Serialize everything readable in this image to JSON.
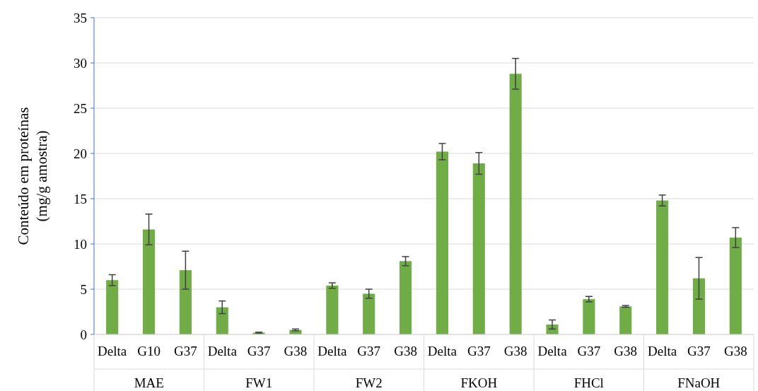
{
  "chart_data": {
    "type": "bar",
    "ylabel": "Conteúdo em proteínas\n(mg/g amostra)",
    "categories": [
      "Delta",
      "G10",
      "G37",
      "Delta",
      "G37",
      "G38",
      "Delta",
      "G37",
      "G38",
      "Delta",
      "G37",
      "G38",
      "Delta",
      "G37",
      "G38",
      "Delta",
      "G37",
      "G38"
    ],
    "annotations": [
      "MAE",
      "FW1",
      "FW2",
      "FKOH",
      "FHCl",
      "FNaOH"
    ],
    "values": [
      6.0,
      11.6,
      7.1,
      3.0,
      0.2,
      0.5,
      5.4,
      4.5,
      8.1,
      20.2,
      18.9,
      28.8,
      1.1,
      3.9,
      3.1,
      14.8,
      6.2,
      10.7
    ],
    "errors": [
      0.6,
      1.7,
      2.1,
      0.7,
      0.05,
      0.1,
      0.3,
      0.5,
      0.5,
      0.9,
      1.2,
      1.7,
      0.5,
      0.3,
      0.1,
      0.6,
      2.3,
      1.1
    ],
    "color": "#70ad47",
    "ylim": [
      0,
      35
    ],
    "yticks": [
      0,
      5,
      10,
      15,
      20,
      25,
      30,
      35
    ],
    "grid": "y"
  }
}
